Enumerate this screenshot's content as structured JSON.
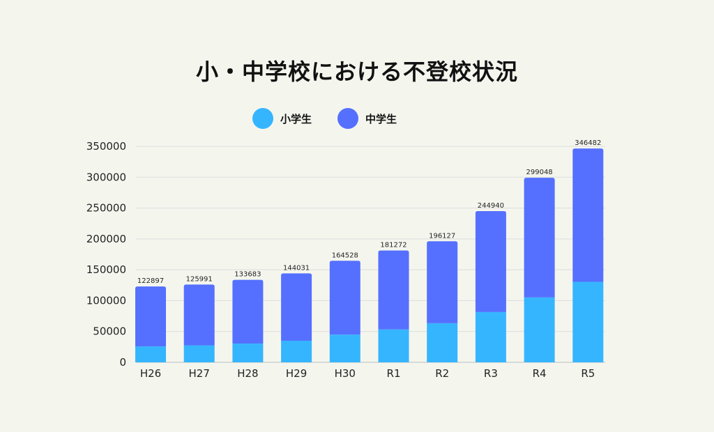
{
  "title": "小・中学校における不登校状況",
  "chart_data": {
    "type": "bar",
    "stacked": true,
    "categories": [
      "H26",
      "H27",
      "H28",
      "H29",
      "H30",
      "R1",
      "R2",
      "R3",
      "R4",
      "R5"
    ],
    "series": [
      {
        "name": "小学生",
        "color": "#36b5ff",
        "values": [
          25864,
          27583,
          30448,
          35032,
          44841,
          53350,
          63350,
          81498,
          105112,
          130370
        ]
      },
      {
        "name": "中学生",
        "color": "#5570ff",
        "values": [
          97033,
          98408,
          103235,
          108999,
          119687,
          127922,
          132777,
          163442,
          193936,
          216112
        ]
      }
    ],
    "totals": [
      122897,
      125991,
      133683,
      144031,
      164528,
      181272,
      196127,
      244940,
      299048,
      346482
    ],
    "total_labels": [
      "122897",
      "125991",
      "133683",
      "144031",
      "164528",
      "181272",
      "196127",
      "244940",
      "299048",
      "346482"
    ],
    "y_ticks": [
      "0",
      "50000",
      "100000",
      "150000",
      "200000",
      "250000",
      "300000",
      "350000"
    ],
    "ylim": [
      0,
      350000
    ],
    "grid": true,
    "legend_position": "top-center"
  }
}
